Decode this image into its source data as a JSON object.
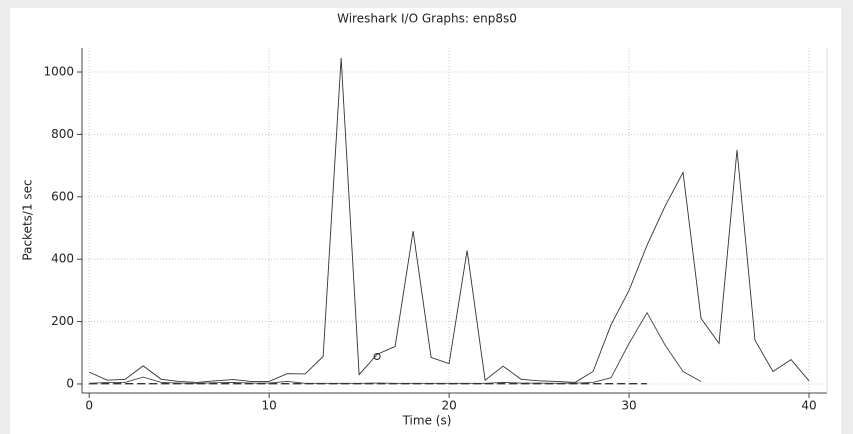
{
  "chart_data": {
    "type": "line",
    "title": "Wireshark I/O Graphs: enp8s0",
    "x_label": "Time (s)",
    "y_label": "Packets/1 sec",
    "x": [
      0,
      1,
      2,
      3,
      4,
      5,
      6,
      7,
      8,
      9,
      10,
      11,
      12,
      13,
      14,
      15,
      16,
      17,
      18,
      19,
      20,
      21,
      22,
      23,
      24,
      25,
      26,
      27,
      28,
      29,
      30,
      31,
      32,
      33,
      34,
      35,
      36,
      37,
      38,
      39,
      40
    ],
    "series": [
      {
        "color": "#333333",
        "style": "solid",
        "values": [
          38,
          12,
          15,
          58,
          15,
          8,
          5,
          10,
          14,
          8,
          8,
          33,
          32,
          88,
          1045,
          30,
          95,
          120,
          490,
          85,
          65,
          428,
          12,
          57,
          15,
          10,
          8,
          5,
          40,
          190,
          300,
          445,
          570,
          678,
          210,
          130,
          750,
          140,
          40,
          78,
          10
        ]
      },
      {
        "color": "#444444",
        "style": "solid",
        "values": [
          2,
          5,
          5,
          22,
          5,
          3,
          2,
          4,
          5,
          3,
          3,
          8,
          2,
          2,
          2,
          2,
          3,
          2,
          2,
          2,
          2,
          2,
          2,
          5,
          3,
          3,
          2,
          3,
          5,
          20,
          130,
          228,
          125,
          40,
          8,
          null,
          null,
          null,
          null,
          null,
          null
        ]
      },
      {
        "color": "#333333",
        "style": "dashed",
        "values": [
          1,
          1,
          1,
          1,
          1,
          1,
          1,
          1,
          1,
          1,
          1,
          1,
          1,
          1,
          1,
          1,
          1,
          1,
          1,
          1,
          1,
          1,
          1,
          1,
          1,
          1,
          1,
          1,
          1,
          1,
          1,
          1,
          null,
          null,
          null,
          null,
          null,
          null,
          null,
          null,
          null
        ]
      }
    ],
    "marker": {
      "x": 16,
      "y": 88
    },
    "xlim": [
      -0.4,
      41
    ],
    "ylim": [
      -29,
      1077
    ],
    "xticks": [
      0,
      10,
      20,
      30,
      40
    ],
    "yticks": [
      0,
      200,
      400,
      600,
      800,
      1000
    ],
    "grid": true
  }
}
